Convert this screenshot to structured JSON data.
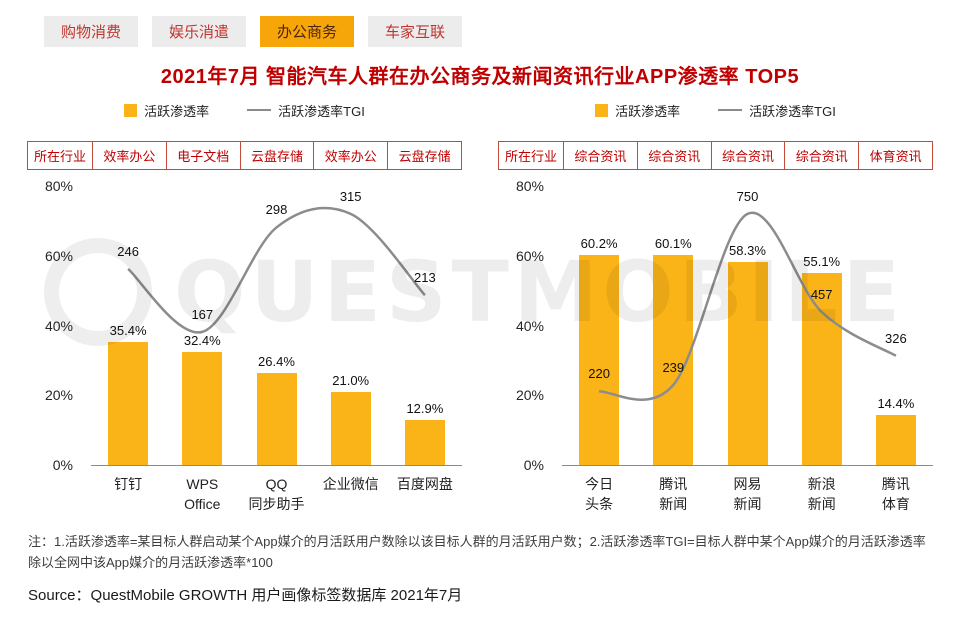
{
  "tabs": [
    {
      "label": "购物消费",
      "active": false
    },
    {
      "label": "娱乐消遣",
      "active": false
    },
    {
      "label": "办公商务",
      "active": true
    },
    {
      "label": "车家互联",
      "active": false
    }
  ],
  "title": "2021年7月 智能汽车人群在办公商务及新闻资讯行业APP渗透率 TOP5",
  "legend": {
    "bar_label": "活跃渗透率",
    "line_label": "活跃渗透率TGI"
  },
  "industry_col_label": "所在行业",
  "watermark": "QUESTMOBILE",
  "colors": {
    "bar": "#fbb417",
    "line": "#8c8c8c",
    "title_red": "#c00000",
    "tab_active_bg": "#f7a60a",
    "table_border": "#c14a3a"
  },
  "chart_data": [
    {
      "type": "bar+line",
      "industries": [
        "效率办公",
        "电子文档",
        "云盘存储",
        "效率办公",
        "云盘存储"
      ],
      "categories": [
        "钉钉",
        "WPS Office",
        "QQ同步助手",
        "企业微信",
        "百度网盘"
      ],
      "categories_display": [
        "钉钉",
        "WPS\nOffice",
        "QQ\n同步助手",
        "企业微信",
        "百度网盘"
      ],
      "series": [
        {
          "name": "活跃渗透率",
          "kind": "bar",
          "unit": "%",
          "values": [
            35.4,
            32.4,
            26.4,
            21.0,
            12.9
          ]
        },
        {
          "name": "活跃渗透率TGI",
          "kind": "line",
          "values": [
            246,
            167,
            298,
            315,
            213
          ]
        }
      ],
      "ylim": [
        0,
        80
      ],
      "yticks": [
        0,
        20,
        40,
        60,
        80
      ],
      "legend_position": "top"
    },
    {
      "type": "bar+line",
      "industries": [
        "综合资讯",
        "综合资讯",
        "综合资讯",
        "综合资讯",
        "体育资讯"
      ],
      "categories": [
        "今日头条",
        "腾讯新闻",
        "网易新闻",
        "新浪新闻",
        "腾讯体育"
      ],
      "categories_display": [
        "今日\n头条",
        "腾讯\n新闻",
        "网易\n新闻",
        "新浪\n新闻",
        "腾讯\n体育"
      ],
      "series": [
        {
          "name": "活跃渗透率",
          "kind": "bar",
          "unit": "%",
          "values": [
            60.2,
            60.1,
            58.3,
            55.1,
            14.4
          ]
        },
        {
          "name": "活跃渗透率TGI",
          "kind": "line",
          "values": [
            220,
            239,
            750,
            457,
            326
          ]
        }
      ],
      "ylim": [
        0,
        80
      ],
      "yticks": [
        0,
        20,
        40,
        60,
        80
      ],
      "legend_position": "top"
    }
  ],
  "note": "注：1.活跃渗透率=某目标人群启动某个App媒介的月活跃用户数除以该目标人群的月活跃用户数；2.活跃渗透率TGI=目标人群中某个App媒介的月活跃渗透率除以全网中该App媒介的月活跃渗透率*100",
  "source": "Source：QuestMobile GROWTH 用户画像标签数据库 2021年7月"
}
